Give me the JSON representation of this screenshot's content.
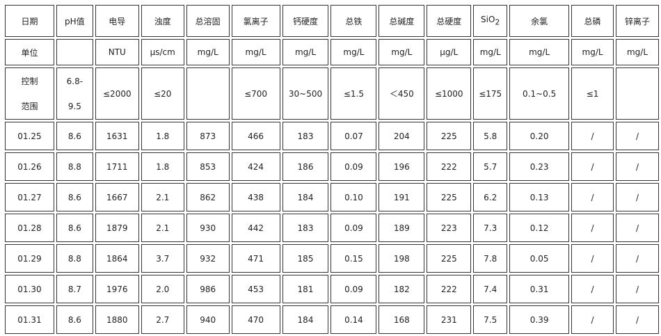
{
  "headers": [
    "日期",
    "pH值",
    "电导",
    "浊度",
    "总溶固",
    "氯离子",
    "钙硬度",
    "总铁",
    "总碱度",
    "总硬度",
    "SiO",
    "余氯",
    "总磷",
    "锌离子"
  ],
  "sio2_subscript": "2",
  "units": [
    "单位",
    "",
    "NTU",
    "μs/cm",
    "mg/L",
    "mg/L",
    "mg/L",
    "mg/L",
    "mg/L",
    "μg/L",
    "mg/L",
    "mg/L",
    "mg/L",
    "mg/L"
  ],
  "control": {
    "label_line1": "控制",
    "label_line2": "范围",
    "ph_line1": "6.8-",
    "ph_line2": "9.5",
    "values": [
      "≤2000",
      "≤20",
      "",
      "≤700",
      "30~500",
      "≤1.5",
      "＜450",
      "≤1000",
      "≤175",
      "0.1~0.5",
      "≤1",
      ""
    ]
  },
  "rows": [
    [
      "01.25",
      "8.6",
      "1631",
      "1.8",
      "873",
      "466",
      "183",
      "0.07",
      "204",
      "225",
      "5.8",
      "0.20",
      "/",
      "/"
    ],
    [
      "01.26",
      "8.8",
      "1711",
      "1.8",
      "853",
      "424",
      "186",
      "0.09",
      "196",
      "222",
      "5.7",
      "0.23",
      "/",
      "/"
    ],
    [
      "01.27",
      "8.6",
      "1667",
      "2.1",
      "862",
      "438",
      "184",
      "0.10",
      "191",
      "225",
      "6.2",
      "0.13",
      "/",
      "/"
    ],
    [
      "01.28",
      "8.6",
      "1879",
      "2.1",
      "930",
      "442",
      "183",
      "0.09",
      "189",
      "223",
      "7.3",
      "0.12",
      "/",
      "/"
    ],
    [
      "01.29",
      "8.8",
      "1864",
      "3.7",
      "932",
      "471",
      "185",
      "0.15",
      "198",
      "225",
      "7.8",
      "0.05",
      "/",
      "/"
    ],
    [
      "01.30",
      "8.7",
      "1976",
      "2.0",
      "986",
      "453",
      "181",
      "0.09",
      "182",
      "222",
      "7.4",
      "0.31",
      "/",
      "/"
    ],
    [
      "01.31",
      "8.6",
      "1880",
      "2.7",
      "940",
      "470",
      "184",
      "0.14",
      "168",
      "231",
      "7.5",
      "0.39",
      "/",
      "/"
    ]
  ]
}
